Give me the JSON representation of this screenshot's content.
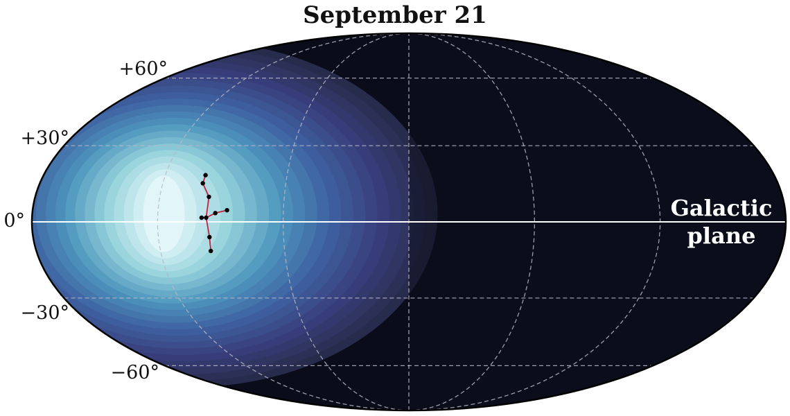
{
  "chart_data": {
    "type": "heatmap",
    "projection": "mollweide",
    "title": "September 21",
    "colormap": "dark-navy to light-cyan",
    "colors": {
      "background": "#0a0c19",
      "peak": "#e2f6f9",
      "galactic_plane": "#ffffff",
      "constellation_line": "#c2223f",
      "star": "#000000",
      "grid": "#b7b7c7",
      "outline": "#000000"
    },
    "lat_ticks": [
      {
        "value": 60,
        "label": "+60°"
      },
      {
        "value": 30,
        "label": "+30°"
      },
      {
        "value": 0,
        "label": "0°"
      },
      {
        "value": -30,
        "label": "−30°"
      },
      {
        "value": -60,
        "label": "−60°"
      }
    ],
    "meridians_deg": [
      -120,
      -60,
      0,
      60,
      120
    ],
    "parallels_deg": [
      -60,
      -30,
      30,
      60
    ],
    "grid": true,
    "peak": {
      "lon": -117,
      "lat": 2
    },
    "annotation": {
      "line1": "Galactic",
      "line2": "plane"
    },
    "stars": [
      {
        "lon": -100.2,
        "lat": 18.2
      },
      {
        "lon": -100.5,
        "lat": 15.0
      },
      {
        "lon": -96.3,
        "lat": 9.7
      },
      {
        "lon": -99.0,
        "lat": 1.6
      },
      {
        "lon": -96.8,
        "lat": 1.6
      },
      {
        "lon": -92.5,
        "lat": 3.4
      },
      {
        "lon": -87.0,
        "lat": 4.5
      },
      {
        "lon": -95.5,
        "lat": -5.9
      },
      {
        "lon": -95.7,
        "lat": -11.3
      }
    ],
    "edges": [
      [
        0,
        1
      ],
      [
        1,
        2
      ],
      [
        2,
        4
      ],
      [
        3,
        4
      ],
      [
        4,
        5
      ],
      [
        5,
        6
      ],
      [
        4,
        7
      ],
      [
        7,
        8
      ]
    ]
  }
}
